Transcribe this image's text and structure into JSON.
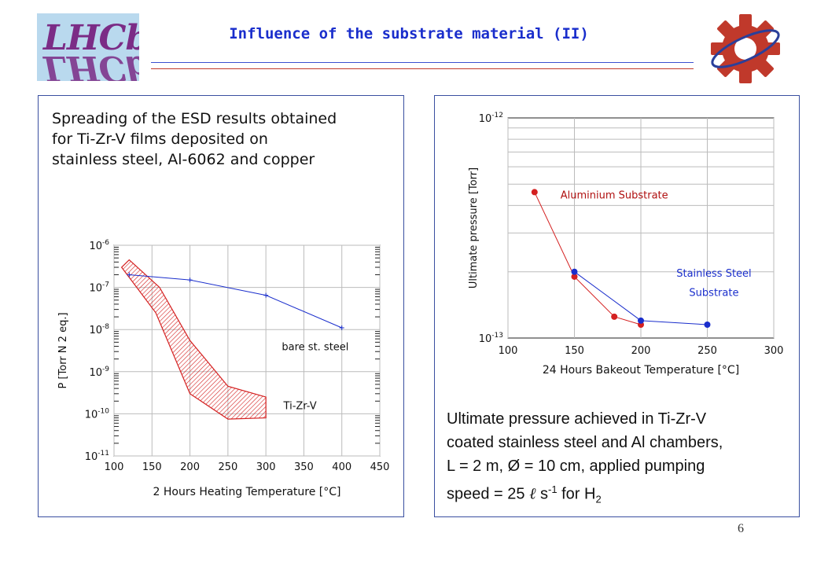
{
  "header": {
    "logo_text": "LHCb",
    "title": "Influence of the substrate material (II)",
    "rule_color_1": "#3a4fd0",
    "rule_color_2": "#c0392b"
  },
  "left_panel": {
    "caption": [
      "Spreading of the ESD results obtained",
      "for Ti-Zr-V films deposited on",
      "stainless steel, Al-6062 and copper"
    ]
  },
  "right_panel": {
    "caption_lines": [
      "Ultimate pressure achieved in Ti-Zr-V",
      "coated stainless steel and Al chambers,",
      "L = 2 m, Ø = 10 cm, applied pumping"
    ],
    "caption_last": {
      "a": "speed = 25 ",
      "ell": "ℓ",
      "b": " s",
      "sup": "-1",
      "c": " for H",
      "sub": "2"
    }
  },
  "footer": {
    "page_number": "6"
  },
  "chart_data": [
    {
      "type": "line",
      "xlabel": "2  Hours Heating Temperature [°C]",
      "ylabel": "P [Torr N 2 eq.]",
      "xlim": [
        100,
        450
      ],
      "ylim_log10": [
        -11,
        -6
      ],
      "x_ticks": [
        "100",
        "150",
        "200",
        "250",
        "300",
        "350",
        "400",
        "450"
      ],
      "y_ticks": [
        "10-6",
        "10-7",
        "10-8",
        "10-9",
        "10-10",
        "10-11"
      ],
      "series": [
        {
          "name": "bare st. steel",
          "color": "#1a2ecc",
          "x": [
            120,
            200,
            300,
            400
          ],
          "y": [
            2e-07,
            1.5e-07,
            6.5e-08,
            1.1e-08
          ]
        }
      ],
      "band": {
        "name": "Ti-Zr-V",
        "color": "#d42020",
        "upper": {
          "x": [
            120,
            160,
            200,
            250,
            300
          ],
          "y": [
            4.5e-07,
            1e-07,
            5.5e-09,
            4.5e-10,
            2.5e-10
          ]
        },
        "lower": {
          "x": [
            110,
            155,
            200,
            250,
            300
          ],
          "y": [
            3e-07,
            2.5e-08,
            3e-10,
            7.5e-11,
            8e-11
          ]
        }
      }
    },
    {
      "type": "line",
      "xlabel": "24 Hours Bakeout Temperature [°C]",
      "ylabel": "Ultimate pressure [Torr]",
      "xlim": [
        100,
        300
      ],
      "ylim_log10": [
        -13,
        -12
      ],
      "x_ticks": [
        "100",
        "150",
        "200",
        "250",
        "300"
      ],
      "y_ticks": [
        "10-12",
        "10-13"
      ],
      "series": [
        {
          "name": "Aluminium Substrate",
          "color": "#d42020",
          "x": [
            120,
            150,
            180,
            200
          ],
          "y": [
            4.6e-13,
            1.9e-13,
            1.25e-13,
            1.15e-13
          ]
        },
        {
          "name": "Stainless Steel Substrate",
          "label_lines": [
            "Stainless Steel",
            "Substrate"
          ],
          "color": "#1a2ecc",
          "x": [
            150,
            200,
            250
          ],
          "y": [
            2e-13,
            1.2e-13,
            1.15e-13
          ]
        }
      ]
    }
  ]
}
